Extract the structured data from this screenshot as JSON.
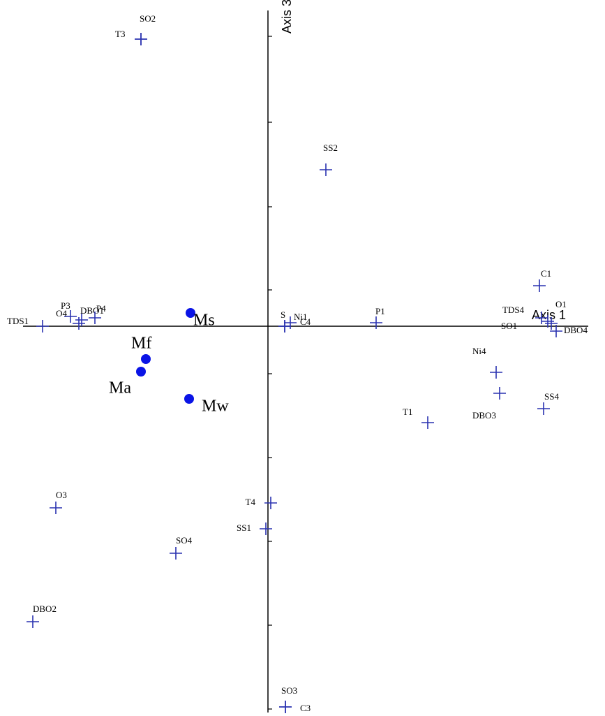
{
  "chart_data": {
    "type": "scatter",
    "x_label": "Axis 1",
    "y_label": "Axis 3",
    "xlim": [
      -3.51,
      4.59
    ],
    "ylim": [
      -5.53,
      4.52
    ],
    "yticks": [
      4.15,
      2.92,
      1.71,
      0.52,
      -0.68,
      -1.88,
      -3.08,
      -4.28,
      -5.48
    ],
    "series": [
      {
        "marker": "plus",
        "color": "#2a32b0",
        "labels": [
          "T3",
          "SO2",
          "SS2",
          "C1",
          "TDS4",
          "O1",
          "SO1",
          "DBO4",
          "P1",
          "S",
          "Ni1",
          "C4",
          "Ni4",
          "DBO3",
          "SS4",
          "T1",
          "T4",
          "SS1",
          "SO4",
          "O3",
          "DBO2",
          "SO3",
          "C3",
          "TDS1",
          "P3",
          "DBO1",
          "O4",
          "P4"
        ],
        "x": [
          -1.82,
          -1.82,
          0.83,
          3.89,
          3.92,
          4.01,
          4.06,
          4.13,
          1.55,
          0.24,
          0.24,
          0.32,
          3.27,
          3.32,
          3.95,
          2.29,
          0.04,
          -0.03,
          -1.32,
          -3.04,
          -3.37,
          0.25,
          0.25,
          -3.23,
          -2.71,
          -2.67,
          -2.83,
          -2.48
        ],
        "values": [
          4.11,
          4.11,
          2.24,
          0.58,
          0.12,
          0.07,
          0.04,
          -0.07,
          0.05,
          0.0,
          0.0,
          0.05,
          -0.66,
          -0.96,
          -1.18,
          -1.38,
          -2.53,
          -2.9,
          -3.25,
          -2.6,
          -4.23,
          -5.45,
          -5.45,
          0.0,
          0.04,
          0.09,
          0.14,
          0.12
        ]
      },
      {
        "marker": "circle",
        "color": "#0a14e6",
        "labels": [
          "Ms",
          "Mf",
          "Ma",
          "Mw"
        ],
        "x": [
          -1.11,
          -1.75,
          -1.82,
          -1.13
        ],
        "values": [
          0.19,
          -0.47,
          -0.65,
          -1.04
        ]
      }
    ]
  }
}
